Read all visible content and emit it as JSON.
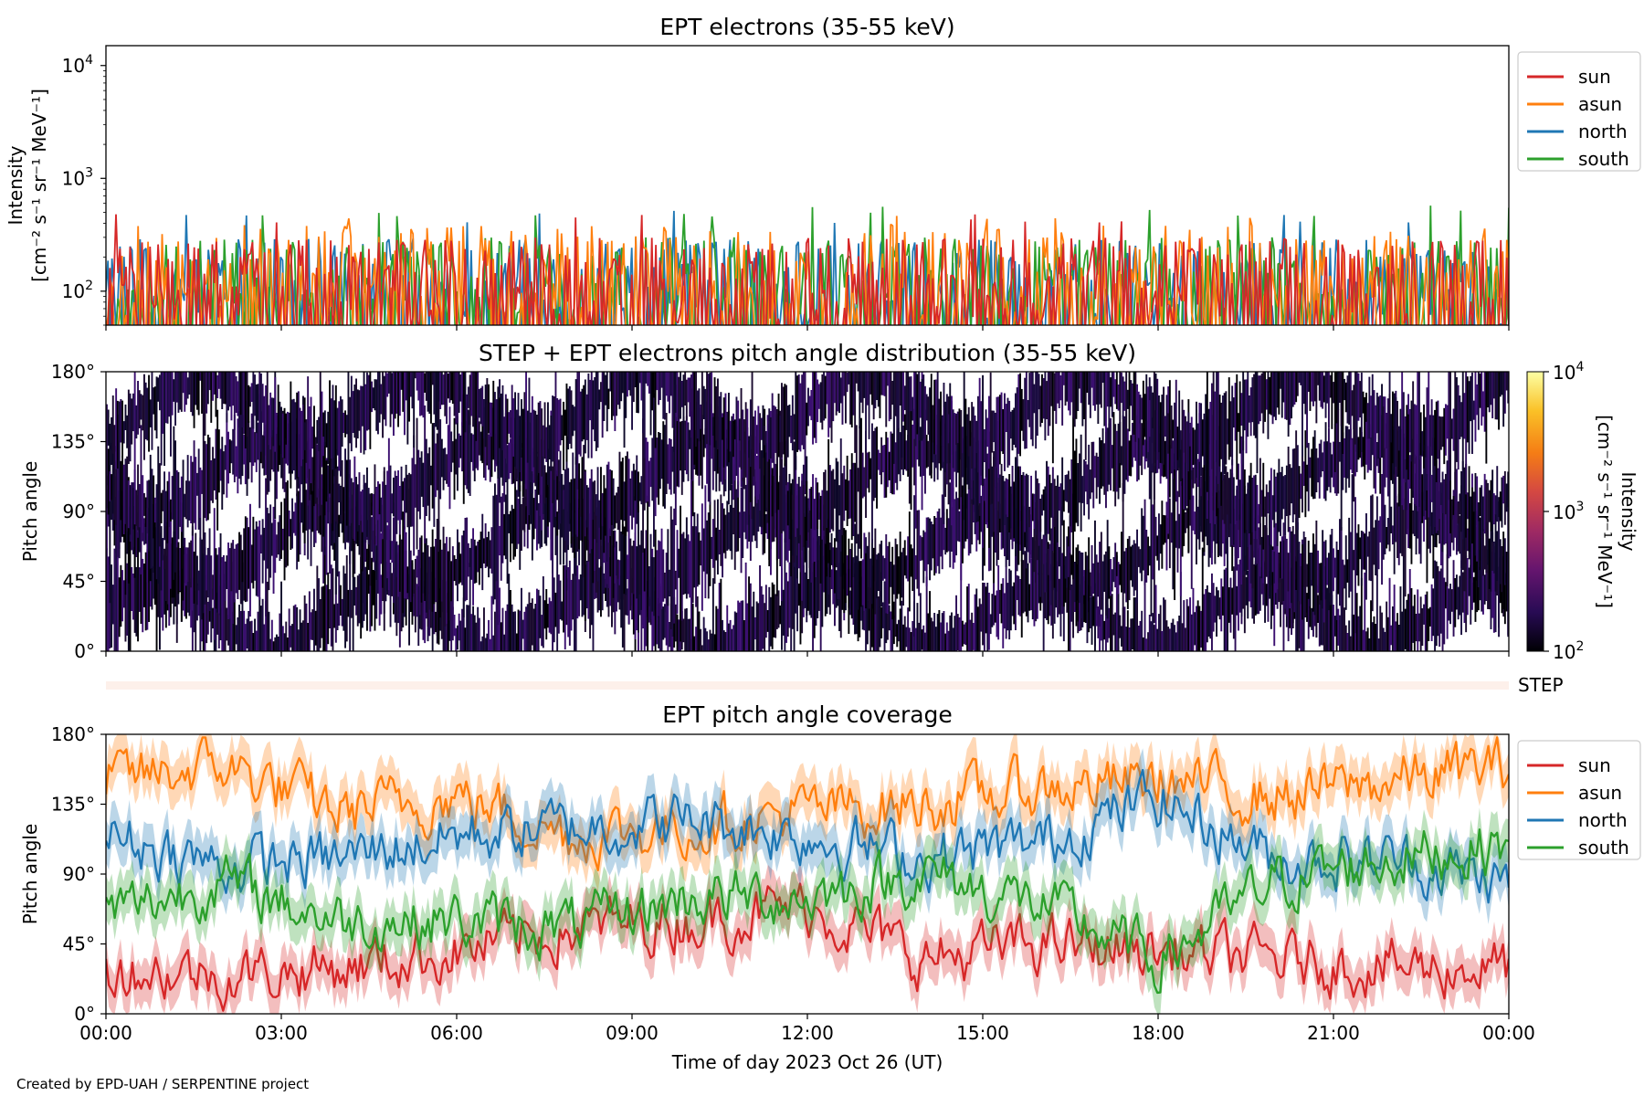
{
  "figure": {
    "credit": "Created by EPD-UAH / SERPENTINE project",
    "xlabel": "Time of day 2023 Oct 26 (UT)",
    "xticks": [
      "00:00",
      "03:00",
      "06:00",
      "09:00",
      "12:00",
      "15:00",
      "18:00",
      "21:00",
      "00:00"
    ]
  },
  "colors": {
    "sun": "#d62728",
    "asun": "#ff7f0e",
    "north": "#1f77b4",
    "south": "#2ca02c"
  },
  "chart_data": [
    {
      "type": "line",
      "title": "EPT electrons (35-55 keV)",
      "ylabel_line1": "Intensity",
      "ylabel_line2": "[cm⁻² s⁻¹ sr⁻¹ MeV⁻¹]",
      "yscale": "log",
      "ylim": [
        50,
        15000
      ],
      "yticks": [
        {
          "base": "10",
          "exp": "2"
        },
        {
          "base": "10",
          "exp": "3"
        },
        {
          "base": "10",
          "exp": "4"
        }
      ],
      "xlim": [
        "2023-10-26T00:00",
        "2023-10-27T00:00"
      ],
      "legend_position": "outside-right",
      "series": [
        {
          "name": "sun",
          "color": "#d62728",
          "typical": [
            50,
            300
          ],
          "max": 500
        },
        {
          "name": "asun",
          "color": "#ff7f0e",
          "typical": [
            50,
            380
          ],
          "max": 480
        },
        {
          "name": "north",
          "color": "#1f77b4",
          "typical": [
            50,
            300
          ],
          "max": 520
        },
        {
          "name": "south",
          "color": "#2ca02c",
          "typical": [
            50,
            300
          ],
          "max": 600
        }
      ]
    },
    {
      "type": "heatmap",
      "title": "STEP + EPT electrons pitch angle distribution (35-55 keV)",
      "ylabel": "Pitch angle",
      "yticks": [
        "0°",
        "45°",
        "90°",
        "135°",
        "180°"
      ],
      "ylim": [
        0,
        180
      ],
      "colorbar": {
        "label_line1": "Intensity",
        "label_line2": "[cm⁻² s⁻¹ sr⁻¹ MeV⁻¹]",
        "ticks": [
          {
            "base": "10",
            "exp": "2"
          },
          {
            "base": "10",
            "exp": "3"
          },
          {
            "base": "10",
            "exp": "4"
          }
        ],
        "scale": "log",
        "range": [
          100,
          10000
        ],
        "colormap": "inferno"
      },
      "step_label": "STEP"
    },
    {
      "type": "line",
      "title": "EPT pitch angle coverage",
      "ylabel": "Pitch angle",
      "yticks": [
        "0°",
        "45°",
        "90°",
        "135°",
        "180°"
      ],
      "ylim": [
        0,
        180
      ],
      "legend_position": "outside-right",
      "series": [
        {
          "name": "sun",
          "color": "#d62728",
          "x_hours": [
            0,
            2,
            4,
            6,
            8,
            10,
            12,
            14,
            16,
            18,
            20,
            22,
            24
          ],
          "values": [
            30,
            25,
            30,
            40,
            55,
            60,
            70,
            35,
            45,
            40,
            35,
            30,
            30
          ]
        },
        {
          "name": "asun",
          "color": "#ff7f0e",
          "x_hours": [
            0,
            2,
            4,
            6,
            8,
            10,
            12,
            14,
            16,
            18,
            20,
            22,
            24
          ],
          "values": [
            150,
            160,
            130,
            140,
            115,
            120,
            130,
            135,
            145,
            150,
            140,
            150,
            160
          ]
        },
        {
          "name": "north",
          "color": "#1f77b4",
          "x_hours": [
            0,
            2,
            4,
            6,
            8,
            10,
            12,
            14,
            16,
            18,
            20,
            22,
            24
          ],
          "values": [
            115,
            95,
            100,
            115,
            120,
            125,
            115,
            100,
            110,
            140,
            100,
            100,
            85
          ]
        },
        {
          "name": "south",
          "color": "#2ca02c",
          "x_hours": [
            0,
            2,
            4,
            6,
            8,
            10,
            12,
            14,
            16,
            18,
            20,
            22,
            24
          ],
          "values": [
            65,
            85,
            60,
            60,
            55,
            75,
            75,
            90,
            70,
            35,
            85,
            100,
            110
          ]
        }
      ]
    }
  ]
}
